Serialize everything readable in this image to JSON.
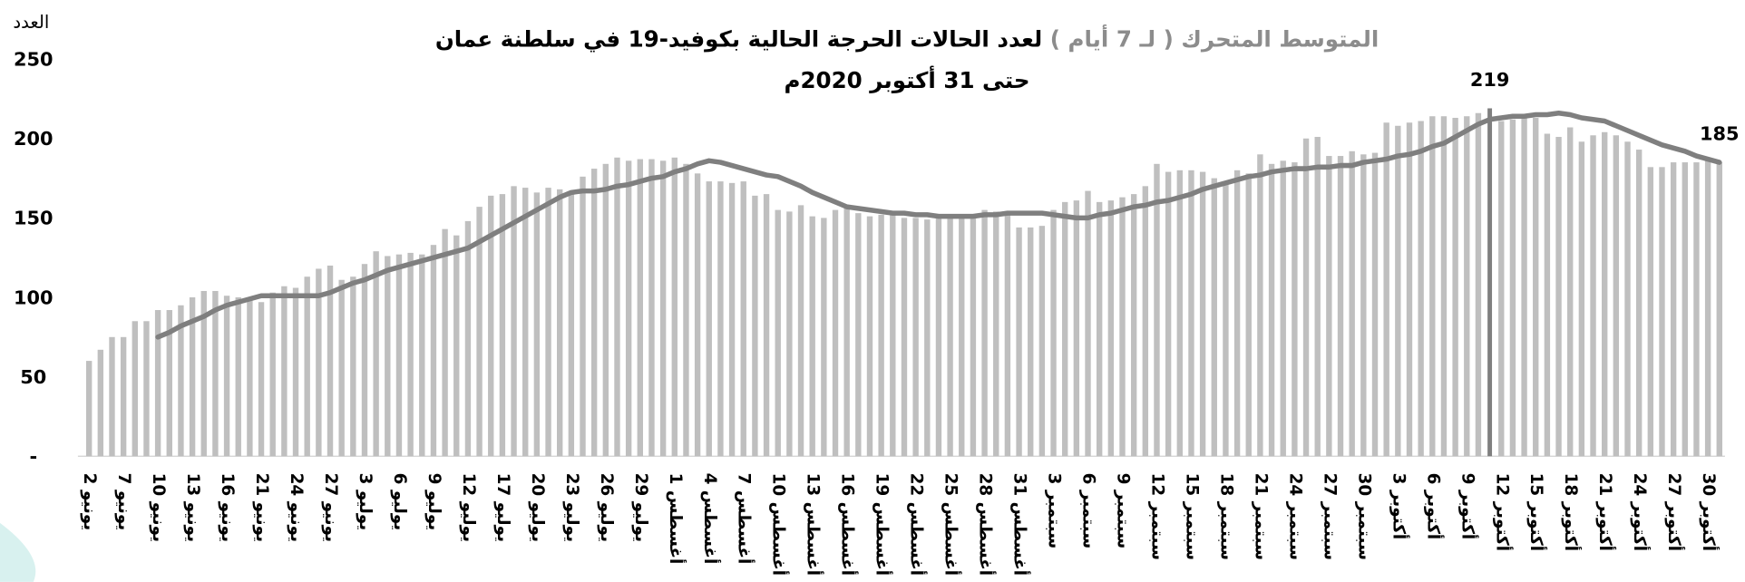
{
  "chart_data": {
    "type": "bar",
    "title_prefix": "المتوسط المتحرك ( لـ 7 أيام )",
    "title": "لعدد الحالات الحرجة الحالية بكوفيد-19 في سلطنة عمان",
    "subtitle": "حتى 31 أكتوبر 2020م",
    "y_label": "العدد",
    "ylim": [
      0,
      250
    ],
    "yticks": [
      {
        "value": 0,
        "label": "-"
      },
      50,
      100,
      150,
      200,
      250
    ],
    "categories": [
      "2 يونيو",
      null,
      null,
      "7 يونيو",
      null,
      null,
      "10 يونيو",
      null,
      null,
      "13 يونيو",
      null,
      null,
      "16 يونيو",
      null,
      null,
      "21 يونيو",
      null,
      null,
      "24 يونيو",
      null,
      null,
      "27 يونيو",
      null,
      null,
      "3 يوليو",
      null,
      null,
      "6 يوليو",
      null,
      null,
      "9 يوليو",
      null,
      null,
      "12 يوليو",
      null,
      null,
      "17 يوليو",
      null,
      null,
      "20 يوليو",
      null,
      null,
      "23 يوليو",
      null,
      null,
      "26 يوليو",
      null,
      null,
      "29 يوليو",
      null,
      null,
      "1 أغسطس",
      null,
      null,
      "4 أغسطس",
      null,
      null,
      "7 أغسطس",
      null,
      null,
      "10 أغسطس",
      null,
      null,
      "13 أغسطس",
      null,
      null,
      "16 أغسطس",
      null,
      null,
      "19 أغسطس",
      null,
      null,
      "22 أغسطس",
      null,
      null,
      "25 أغسطس",
      null,
      null,
      "28 أغسطس",
      null,
      null,
      "31 أغسطس",
      null,
      null,
      "3 سبتمبر",
      null,
      null,
      "6 سبتمبر",
      null,
      null,
      "9 سبتمبر",
      null,
      null,
      "12 سبتمبر",
      null,
      null,
      "15 سبتمبر",
      null,
      null,
      "18 سبتمبر",
      null,
      null,
      "21 سبتمبر",
      null,
      null,
      "24 سبتمبر",
      null,
      null,
      "27 سبتمبر",
      null,
      null,
      "30 سبتمبر",
      null,
      null,
      "3 أكتوبر",
      null,
      null,
      "6 أكتوبر",
      null,
      null,
      "9 أكتوبر",
      null,
      null,
      "12 أكتوبر",
      null,
      null,
      "15 أكتوبر",
      null,
      null,
      "18 أكتوبر",
      null,
      null,
      "21 أكتوبر",
      null,
      null,
      "24 أكتوبر",
      null,
      null,
      "27 أكتوبر",
      null,
      null,
      "30 أكتوبر",
      null
    ],
    "series": [
      {
        "type": "bar",
        "color": "#bfbfbf",
        "values": [
          60,
          67,
          75,
          75,
          85,
          85,
          92,
          92,
          95,
          100,
          104,
          104,
          101,
          100,
          100,
          97,
          103,
          107,
          106,
          113,
          118,
          120,
          111,
          113,
          121,
          129,
          126,
          127,
          128,
          127,
          133,
          143,
          139,
          148,
          157,
          164,
          165,
          170,
          169,
          166,
          169,
          168,
          167,
          176,
          181,
          184,
          188,
          186,
          187,
          187,
          186,
          188,
          184,
          178,
          173,
          173,
          172,
          173,
          164,
          165,
          155,
          154,
          158,
          151,
          150,
          155,
          158,
          153,
          151,
          152,
          152,
          150,
          150,
          149,
          150,
          151,
          152,
          152,
          155,
          154,
          152,
          144,
          144,
          145,
          155,
          160,
          161,
          167,
          160,
          161,
          163,
          165,
          170,
          184,
          179,
          180,
          180,
          179,
          175,
          172,
          180,
          178,
          190,
          184,
          186,
          185,
          200,
          201,
          189,
          189,
          192,
          190,
          191,
          210,
          208,
          210,
          211,
          214,
          214,
          213,
          214,
          216,
          219,
          211,
          212,
          213,
          213,
          203,
          201,
          207,
          198,
          202,
          204,
          202,
          198,
          193,
          182,
          182,
          185,
          185,
          185,
          187,
          185
        ]
      },
      {
        "type": "line",
        "color": "#7f7f7f",
        "values": [
          null,
          null,
          null,
          null,
          null,
          null,
          75,
          78,
          82,
          85,
          88,
          92,
          95,
          97,
          99,
          101,
          101,
          101,
          101,
          101,
          101,
          103,
          106,
          109,
          111,
          114,
          117,
          119,
          121,
          123,
          125,
          127,
          129,
          131,
          135,
          139,
          143,
          147,
          151,
          155,
          159,
          163,
          166,
          167,
          167,
          168,
          170,
          171,
          173,
          175,
          176,
          179,
          181,
          184,
          186,
          185,
          183,
          181,
          179,
          177,
          176,
          173,
          170,
          166,
          163,
          160,
          157,
          156,
          155,
          154,
          153,
          153,
          152,
          152,
          151,
          151,
          151,
          151,
          152,
          152,
          153,
          153,
          153,
          153,
          152,
          151,
          150,
          150,
          152,
          153,
          155,
          157,
          158,
          160,
          161,
          163,
          165,
          168,
          170,
          172,
          174,
          176,
          177,
          179,
          180,
          181,
          181,
          182,
          182,
          183,
          183,
          185,
          186,
          187,
          189,
          190,
          192,
          195,
          197,
          201,
          205,
          209,
          212,
          213,
          214,
          214,
          215,
          215,
          216,
          215,
          213,
          212,
          211,
          208,
          205,
          202,
          199,
          196,
          194,
          192,
          189,
          187,
          185
        ]
      }
    ],
    "labeled": [
      122,
      142
    ],
    "highlight": {
      "index": 122,
      "color": "#7f7f7f"
    }
  }
}
